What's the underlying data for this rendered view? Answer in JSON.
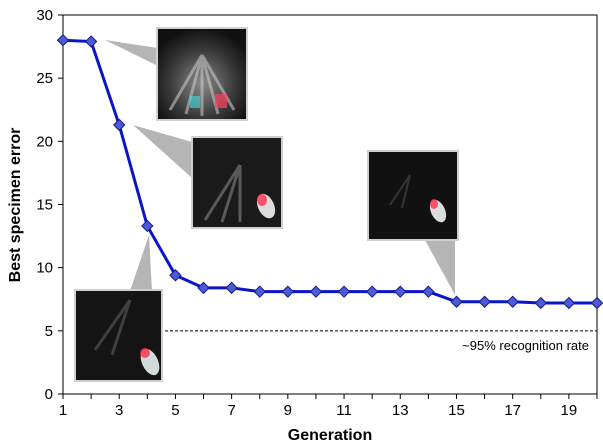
{
  "chart_data": {
    "type": "line",
    "title": "",
    "xlabel": "Generation",
    "ylabel": "Best specimen error",
    "xlim": [
      1,
      20
    ],
    "ylim": [
      0,
      30
    ],
    "x_ticks": [
      1,
      3,
      5,
      7,
      9,
      11,
      13,
      15,
      17,
      19
    ],
    "y_ticks": [
      0,
      5,
      10,
      15,
      20,
      25,
      30
    ],
    "grid": false,
    "legend": "none",
    "series": [
      {
        "color": "#0a14c8",
        "marker": "diamond",
        "x": [
          1,
          2,
          3,
          4,
          5,
          6,
          7,
          8,
          9,
          10,
          11,
          12,
          13,
          14,
          15,
          16,
          17,
          18,
          19,
          20
        ],
        "y": [
          28.0,
          27.9,
          21.3,
          13.3,
          9.4,
          8.4,
          8.4,
          8.1,
          8.1,
          8.1,
          8.1,
          8.1,
          8.1,
          8.1,
          7.3,
          7.3,
          7.3,
          7.2,
          7.2,
          7.2
        ]
      }
    ],
    "reference_line": {
      "y": 5.0,
      "style": "dashed",
      "label": "~95% recognition rate"
    },
    "annotations": [
      {
        "type": "image-thumbnail",
        "generation": 2,
        "description": "specimen image"
      },
      {
        "type": "image-thumbnail",
        "generation": 3,
        "description": "specimen image"
      },
      {
        "type": "image-thumbnail",
        "generation": 4,
        "description": "specimen image"
      },
      {
        "type": "image-thumbnail",
        "generation": 15,
        "description": "specimen image"
      }
    ]
  }
}
